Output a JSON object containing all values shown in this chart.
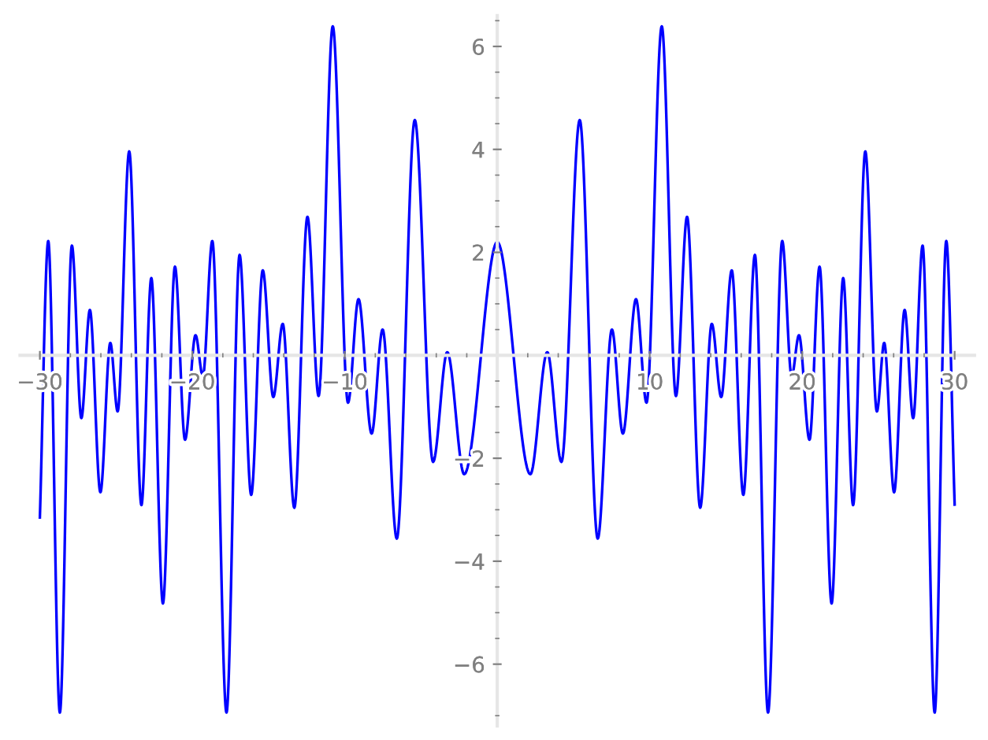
{
  "chart_data": {
    "type": "line",
    "x": [
      -30,
      -29.45,
      -28.69,
      -27.9,
      -27.28,
      -26.72,
      -26.03,
      -25.38,
      -24.9,
      -24.14,
      -23.34,
      -22.69,
      -21.93,
      -21.14,
      -20.48,
      -19.79,
      -19.31,
      -18.69,
      -17.76,
      -16.9,
      -16.14,
      -15.38,
      -14.69,
      -14.07,
      -13.31,
      -12.45,
      -11.72,
      -10.79,
      -9.79,
      -9.1,
      -8.24,
      -7.52,
      -6.59,
      -5.41,
      -4.21,
      -3.28,
      -2.17,
      0,
      2.17,
      3.28,
      4.21,
      5.41,
      6.59,
      7.52,
      8.24,
      9.1,
      9.79,
      10.79,
      11.72,
      12.45,
      13.31,
      14.07,
      14.69,
      15.38,
      16.14,
      16.9,
      17.76,
      18.69,
      19.31,
      19.79,
      20.48,
      21.14,
      21.93,
      22.69,
      23.34,
      24.14,
      24.9,
      25.38,
      26.03,
      26.72,
      27.28,
      27.9,
      28.69,
      29.45,
      30
    ],
    "series": [
      {
        "color": "#0000ff",
        "values": [
          -3.15,
          2.22,
          -6.94,
          2.13,
          -1.22,
          0.88,
          -2.66,
          0.24,
          -1.09,
          3.96,
          -2.91,
          1.5,
          -4.82,
          1.72,
          -1.64,
          0.39,
          -0.41,
          2.22,
          -6.94,
          1.95,
          -2.71,
          1.65,
          -0.81,
          0.61,
          -2.96,
          2.69,
          -0.79,
          6.39,
          -0.92,
          1.09,
          -1.52,
          0.5,
          -3.56,
          4.57,
          -2.07,
          0.06,
          -2.31,
          2.2,
          -2.31,
          0.06,
          -2.07,
          4.57,
          -3.56,
          0.5,
          -1.52,
          1.09,
          -0.92,
          6.39,
          -0.79,
          2.69,
          -2.96,
          0.61,
          -0.81,
          1.65,
          -2.71,
          1.95,
          -6.94,
          2.22,
          -0.41,
          0.39,
          -1.64,
          1.72,
          -4.82,
          1.5,
          -2.91,
          3.96,
          -1.09,
          0.24,
          -2.66,
          0.88,
          -1.22,
          2.13,
          -6.94,
          2.22,
          -2.9
        ]
      }
    ],
    "xlim": [
      -31.3,
      31.3
    ],
    "ylim": [
      -7.2,
      6.6
    ],
    "xticks": [
      -30,
      {
        "value": -28,
        "label": null
      },
      {
        "value": -26,
        "label": null
      },
      {
        "value": -24,
        "label": null
      },
      {
        "value": -22,
        "label": null
      },
      -20,
      {
        "value": -18,
        "label": null
      },
      {
        "value": -16,
        "label": null
      },
      {
        "value": -14,
        "label": null
      },
      {
        "value": -12,
        "label": null
      },
      -10,
      {
        "value": -8,
        "label": null
      },
      {
        "value": -6,
        "label": null
      },
      {
        "value": -4,
        "label": null
      },
      {
        "value": -2,
        "label": null
      },
      {
        "value": 2,
        "label": null
      },
      {
        "value": 4,
        "label": null
      },
      {
        "value": 6,
        "label": null
      },
      {
        "value": 8,
        "label": null
      },
      10,
      {
        "value": 12,
        "label": null
      },
      {
        "value": 14,
        "label": null
      },
      {
        "value": 16,
        "label": null
      },
      {
        "value": 18,
        "label": null
      },
      20,
      {
        "value": 22,
        "label": null
      },
      {
        "value": 24,
        "label": null
      },
      {
        "value": 26,
        "label": null
      },
      {
        "value": 28,
        "label": null
      },
      30
    ],
    "yticks": [
      {
        "value": -7,
        "label": null
      },
      -6,
      {
        "value": -5.5,
        "label": null
      },
      {
        "value": -5,
        "label": null
      },
      {
        "value": -4.5,
        "label": null
      },
      -4,
      {
        "value": -3.5,
        "label": null
      },
      {
        "value": -3,
        "label": null
      },
      {
        "value": -2.5,
        "label": null
      },
      -2,
      {
        "value": -1.5,
        "label": null
      },
      {
        "value": -1,
        "label": null
      },
      {
        "value": -0.5,
        "label": null
      },
      {
        "value": 0.5,
        "label": null
      },
      {
        "value": 1,
        "label": null
      },
      {
        "value": 1.5,
        "label": null
      },
      2,
      {
        "value": 2.5,
        "label": null
      },
      {
        "value": 3,
        "label": null
      },
      {
        "value": 3.5,
        "label": null
      },
      4,
      {
        "value": 4.5,
        "label": null
      },
      {
        "value": 5,
        "label": null
      },
      {
        "value": 5.5,
        "label": null
      },
      6,
      {
        "value": 6.5,
        "label": null
      }
    ],
    "grid": false,
    "marker": "none",
    "line_style": "solid"
  }
}
